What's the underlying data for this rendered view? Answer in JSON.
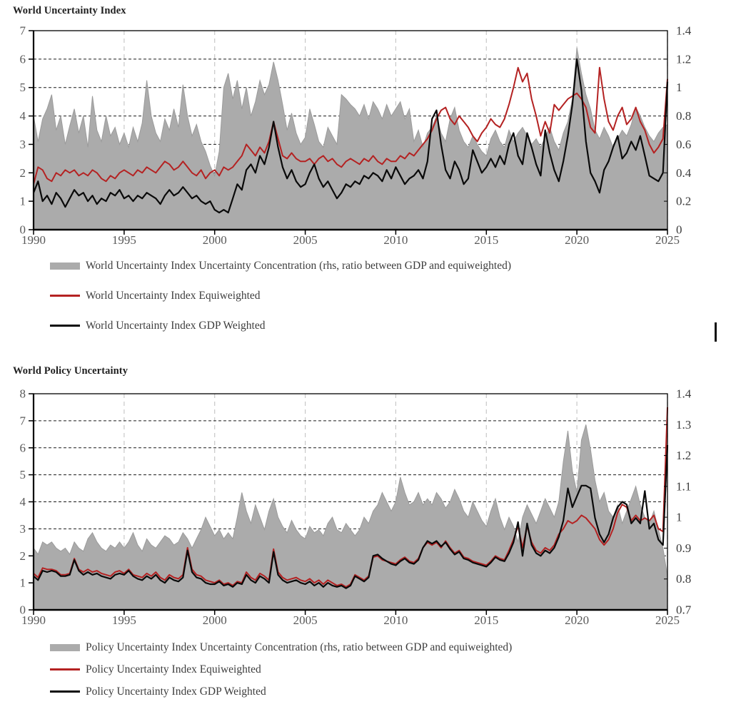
{
  "page": {
    "background": "#ffffff"
  },
  "charts": [
    {
      "title": "World Uncertainty Index",
      "legend": [
        {
          "swatch": "area",
          "color": "#ababab",
          "label": "World Uncertainty Index Uncertainty Concentration (rhs, ratio between GDP and equiweighted)"
        },
        {
          "swatch": "line",
          "color": "#b42222",
          "label": "World Uncertainty Index Equiweighted"
        },
        {
          "swatch": "line",
          "color": "#0a0a0a",
          "label": "World Uncertainty Index GDP Weighted"
        }
      ]
    },
    {
      "title": "World Policy Uncertainty",
      "legend": [
        {
          "swatch": "area",
          "color": "#ababab",
          "label": "Policy Uncertainty Index Uncertainty Concentration (rhs, ratio between GDP and equiweighted)"
        },
        {
          "swatch": "line",
          "color": "#b42222",
          "label": "Policy Uncertainty Index Equiweighted"
        },
        {
          "swatch": "line",
          "color": "#0a0a0a",
          "label": "Policy Uncertainty Index GDP Weighted"
        }
      ]
    }
  ],
  "chart_data": [
    {
      "type": "area",
      "title": "World Uncertainty Index",
      "frequency": "quarterly",
      "x": {
        "start": 1990,
        "end": 2025,
        "step": 0.25,
        "ticks": [
          1990,
          1995,
          2000,
          2005,
          2010,
          2015,
          2020,
          2025
        ],
        "tick_labels": [
          "1990",
          "1995",
          "2000",
          "2005",
          "2010",
          "2015",
          "2020",
          "2025"
        ]
      },
      "left_axis": {
        "min": 0,
        "max": 7,
        "ticks": [
          0,
          1,
          2,
          3,
          4,
          5,
          6,
          7
        ],
        "labels": [
          "0",
          "1",
          "2",
          "3",
          "4",
          "5",
          "6",
          "7"
        ]
      },
      "right_axis": {
        "min": 0,
        "max": 1.4,
        "ticks": [
          0,
          0.2,
          0.4,
          0.6,
          0.8,
          1,
          1.2,
          1.4
        ],
        "labels": [
          "0",
          "0.2",
          "0.4",
          "0.6",
          "0.8",
          "1",
          "1.2",
          "1.4"
        ]
      },
      "grid": {
        "horizontal": true,
        "vertical": true
      },
      "legend_position": "bottom",
      "series": [
        {
          "name": "World Uncertainty Index Uncertainty Concentration (rhs, ratio between GDP and equiweighted)",
          "type": "area",
          "axis": "right",
          "color": "#ababab",
          "values": [
            0.8,
            0.62,
            0.78,
            0.85,
            0.95,
            0.7,
            0.8,
            0.6,
            0.73,
            0.85,
            0.68,
            0.8,
            0.58,
            0.94,
            0.7,
            0.62,
            0.8,
            0.66,
            0.72,
            0.6,
            0.68,
            0.58,
            0.72,
            0.62,
            0.75,
            1.05,
            0.8,
            0.68,
            0.62,
            0.78,
            0.7,
            0.85,
            0.72,
            1.02,
            0.8,
            0.66,
            0.74,
            0.62,
            0.55,
            0.45,
            0.38,
            0.55,
            1.0,
            1.1,
            0.92,
            1.05,
            0.85,
            1.0,
            0.8,
            0.9,
            1.05,
            0.95,
            1.02,
            1.18,
            1.05,
            0.88,
            0.7,
            0.82,
            0.68,
            0.6,
            0.65,
            0.85,
            0.74,
            0.62,
            0.58,
            0.72,
            0.66,
            0.6,
            0.95,
            0.92,
            0.88,
            0.85,
            0.8,
            0.88,
            0.78,
            0.9,
            0.85,
            0.78,
            0.88,
            0.8,
            0.85,
            0.9,
            0.78,
            0.85,
            0.62,
            0.7,
            0.58,
            0.68,
            0.72,
            0.8,
            0.68,
            0.62,
            0.78,
            0.86,
            0.7,
            0.62,
            0.58,
            0.66,
            0.6,
            0.55,
            0.52,
            0.64,
            0.7,
            0.62,
            0.58,
            0.7,
            0.62,
            0.68,
            0.72,
            0.66,
            0.6,
            0.64,
            0.58,
            0.65,
            0.72,
            0.62,
            0.56,
            0.68,
            0.76,
            0.92,
            1.28,
            1.1,
            0.95,
            0.85,
            0.7,
            0.64,
            0.72,
            0.66,
            0.58,
            0.64,
            0.7,
            0.66,
            0.74,
            0.86,
            0.8,
            0.72,
            0.66,
            0.62,
            0.68,
            0.72,
            0.74
          ]
        },
        {
          "name": "World Uncertainty Index Equiweighted",
          "type": "line",
          "axis": "left",
          "color": "#b42222",
          "values": [
            1.6,
            2.2,
            2.1,
            1.8,
            1.7,
            2.0,
            1.9,
            2.1,
            2.0,
            2.1,
            1.9,
            2.0,
            1.9,
            2.1,
            2.0,
            1.8,
            1.7,
            1.9,
            1.8,
            2.0,
            2.1,
            2.0,
            1.9,
            2.1,
            2.0,
            2.2,
            2.1,
            2.0,
            2.2,
            2.4,
            2.3,
            2.1,
            2.2,
            2.4,
            2.2,
            2.0,
            1.9,
            2.1,
            1.8,
            2.0,
            2.1,
            1.9,
            2.2,
            2.1,
            2.2,
            2.4,
            2.6,
            3.0,
            2.8,
            2.6,
            2.9,
            2.7,
            3.1,
            3.8,
            3.2,
            2.6,
            2.5,
            2.7,
            2.5,
            2.4,
            2.4,
            2.5,
            2.3,
            2.5,
            2.6,
            2.4,
            2.5,
            2.3,
            2.2,
            2.4,
            2.5,
            2.4,
            2.3,
            2.5,
            2.4,
            2.6,
            2.4,
            2.3,
            2.5,
            2.4,
            2.4,
            2.6,
            2.5,
            2.7,
            2.6,
            2.8,
            3.0,
            3.2,
            3.5,
            3.9,
            4.2,
            4.3,
            3.9,
            3.7,
            4.0,
            3.8,
            3.6,
            3.3,
            3.1,
            3.4,
            3.6,
            3.9,
            3.7,
            3.6,
            3.9,
            4.4,
            5.0,
            5.7,
            5.2,
            5.5,
            4.6,
            4.0,
            3.3,
            3.8,
            3.4,
            4.4,
            4.2,
            4.4,
            4.6,
            4.7,
            4.8,
            4.6,
            4.3,
            3.6,
            3.4,
            5.7,
            4.6,
            3.8,
            3.5,
            4.0,
            4.3,
            3.7,
            3.9,
            4.3,
            3.8,
            3.5,
            3.0,
            2.7,
            2.9,
            3.2,
            5.3
          ]
        },
        {
          "name": "World Uncertainty Index GDP Weighted",
          "type": "line",
          "axis": "left",
          "color": "#0a0a0a",
          "values": [
            1.3,
            1.7,
            1.0,
            1.2,
            0.9,
            1.3,
            1.1,
            0.8,
            1.1,
            1.4,
            1.2,
            1.3,
            1.0,
            1.2,
            0.9,
            1.1,
            1.0,
            1.3,
            1.2,
            1.4,
            1.1,
            1.2,
            1.0,
            1.2,
            1.1,
            1.3,
            1.2,
            1.1,
            0.9,
            1.2,
            1.4,
            1.2,
            1.3,
            1.5,
            1.3,
            1.1,
            1.2,
            1.0,
            0.9,
            1.0,
            0.7,
            0.6,
            0.7,
            0.6,
            1.1,
            1.6,
            1.4,
            2.1,
            2.3,
            2.0,
            2.6,
            2.3,
            2.9,
            3.8,
            2.9,
            2.2,
            1.8,
            2.1,
            1.7,
            1.5,
            1.6,
            2.0,
            2.3,
            1.8,
            1.5,
            1.7,
            1.4,
            1.1,
            1.3,
            1.6,
            1.5,
            1.7,
            1.6,
            1.9,
            1.8,
            2.0,
            1.9,
            1.7,
            2.1,
            1.8,
            2.2,
            1.9,
            1.6,
            1.8,
            1.9,
            2.1,
            1.8,
            2.4,
            3.9,
            4.2,
            3.0,
            2.1,
            1.8,
            2.4,
            2.1,
            1.6,
            1.8,
            2.8,
            2.4,
            2.0,
            2.2,
            2.5,
            2.2,
            2.6,
            2.3,
            3.0,
            3.4,
            2.6,
            2.3,
            3.4,
            2.9,
            2.3,
            1.9,
            3.5,
            2.7,
            2.1,
            1.7,
            2.4,
            3.3,
            4.4,
            6.0,
            4.9,
            3.1,
            2.0,
            1.7,
            1.3,
            2.1,
            2.4,
            2.9,
            3.3,
            2.5,
            2.7,
            3.1,
            2.8,
            3.3,
            2.6,
            1.9,
            1.8,
            1.7,
            2.0,
            5.2
          ]
        }
      ]
    },
    {
      "type": "area",
      "title": "World Policy Uncertainty",
      "frequency": "quarterly",
      "x": {
        "start": 1990,
        "end": 2025,
        "step": 0.25,
        "ticks": [
          1990,
          1995,
          2000,
          2005,
          2010,
          2015,
          2020,
          2025
        ],
        "tick_labels": [
          "1990",
          "1995",
          "2000",
          "2005",
          "2010",
          "2015",
          "2020",
          "2025"
        ]
      },
      "left_axis": {
        "min": 0,
        "max": 8,
        "ticks": [
          0,
          1,
          2,
          3,
          4,
          5,
          6,
          7,
          8
        ],
        "labels": [
          "0",
          "1",
          "2",
          "3",
          "4",
          "5",
          "6",
          "7",
          "8"
        ]
      },
      "right_axis": {
        "min": 0.7,
        "max": 1.4,
        "ticks": [
          0.7,
          0.8,
          0.9,
          1,
          1.1,
          1.2,
          1.3,
          1.4
        ],
        "labels": [
          "0.7",
          "0.8",
          "0.9",
          "1",
          "1.1",
          "1.2",
          "1.3",
          "1.4"
        ]
      },
      "grid": {
        "horizontal": true,
        "vertical": true
      },
      "legend_position": "bottom",
      "series": [
        {
          "name": "Policy Uncertainty Index Uncertainty Concentration (rhs, ratio between GDP and equiweighted)",
          "type": "area",
          "axis": "right",
          "color": "#ababab",
          "values": [
            0.9,
            0.88,
            0.92,
            0.91,
            0.92,
            0.9,
            0.89,
            0.9,
            0.88,
            0.92,
            0.9,
            0.89,
            0.93,
            0.95,
            0.92,
            0.9,
            0.89,
            0.91,
            0.9,
            0.92,
            0.9,
            0.92,
            0.95,
            0.91,
            0.89,
            0.93,
            0.91,
            0.9,
            0.92,
            0.94,
            0.93,
            0.91,
            0.92,
            0.95,
            0.93,
            0.9,
            0.93,
            0.96,
            1.0,
            0.97,
            0.94,
            0.96,
            0.93,
            0.95,
            0.93,
            1.0,
            1.08,
            1.02,
            0.98,
            1.04,
            1.0,
            0.96,
            1.02,
            1.06,
            1.0,
            0.97,
            0.95,
            0.99,
            0.96,
            0.94,
            0.93,
            0.97,
            0.95,
            0.96,
            0.94,
            0.98,
            1.0,
            0.96,
            0.95,
            0.98,
            0.96,
            0.94,
            0.96,
            1.0,
            0.98,
            1.02,
            1.04,
            1.08,
            1.05,
            1.02,
            1.05,
            1.13,
            1.08,
            1.04,
            1.05,
            1.08,
            1.04,
            1.06,
            1.04,
            1.08,
            1.06,
            1.03,
            1.05,
            1.09,
            1.06,
            1.02,
            1.0,
            1.05,
            1.02,
            0.99,
            0.97,
            1.02,
            1.06,
            1.0,
            0.96,
            1.0,
            0.97,
            0.92,
            1.0,
            1.04,
            1.01,
            0.98,
            1.02,
            1.06,
            1.03,
            1.0,
            1.05,
            1.18,
            1.28,
            1.15,
            1.08,
            1.25,
            1.3,
            1.22,
            1.12,
            1.05,
            1.08,
            1.02,
            1.0,
            1.04,
            0.98,
            1.02,
            1.06,
            1.1,
            1.04,
            1.0,
            0.98,
            1.02,
            0.96,
            0.9,
            0.81
          ]
        },
        {
          "name": "Policy Uncertainty Index Equiweighted",
          "type": "line",
          "axis": "left",
          "color": "#b42222",
          "values": [
            1.35,
            1.2,
            1.55,
            1.5,
            1.5,
            1.45,
            1.3,
            1.3,
            1.35,
            1.9,
            1.5,
            1.4,
            1.5,
            1.4,
            1.45,
            1.35,
            1.3,
            1.25,
            1.4,
            1.45,
            1.35,
            1.5,
            1.3,
            1.25,
            1.2,
            1.35,
            1.25,
            1.4,
            1.2,
            1.1,
            1.3,
            1.2,
            1.15,
            1.3,
            2.3,
            1.5,
            1.3,
            1.25,
            1.1,
            1.05,
            1.0,
            1.1,
            0.95,
            1.0,
            0.9,
            1.05,
            1.0,
            1.4,
            1.2,
            1.1,
            1.35,
            1.25,
            1.1,
            2.25,
            1.4,
            1.2,
            1.1,
            1.15,
            1.2,
            1.1,
            1.05,
            1.15,
            1.0,
            1.1,
            0.95,
            1.1,
            1.0,
            0.9,
            0.95,
            0.85,
            0.95,
            1.3,
            1.2,
            1.1,
            1.25,
            1.95,
            2.0,
            1.85,
            1.8,
            1.75,
            1.7,
            1.85,
            1.95,
            1.8,
            1.75,
            1.9,
            2.3,
            2.5,
            2.4,
            2.5,
            2.3,
            2.55,
            2.3,
            2.1,
            2.2,
            1.95,
            1.9,
            1.8,
            1.75,
            1.7,
            1.65,
            1.8,
            2.0,
            1.9,
            1.85,
            2.2,
            2.6,
            3.1,
            2.3,
            3.1,
            2.5,
            2.2,
            2.1,
            2.3,
            2.2,
            2.4,
            2.8,
            3.0,
            3.3,
            3.2,
            3.3,
            3.5,
            3.4,
            3.2,
            3.0,
            2.6,
            2.4,
            2.6,
            3.0,
            3.6,
            3.9,
            3.8,
            3.3,
            3.5,
            3.3,
            3.4,
            3.3,
            3.5,
            3.0,
            2.9,
            7.5
          ]
        },
        {
          "name": "Policy Uncertainty Index GDP Weighted",
          "type": "line",
          "axis": "left",
          "color": "#0a0a0a",
          "values": [
            1.25,
            1.1,
            1.45,
            1.4,
            1.45,
            1.4,
            1.25,
            1.25,
            1.3,
            1.85,
            1.45,
            1.3,
            1.4,
            1.3,
            1.35,
            1.25,
            1.2,
            1.15,
            1.3,
            1.35,
            1.3,
            1.45,
            1.25,
            1.15,
            1.1,
            1.25,
            1.15,
            1.3,
            1.1,
            1.0,
            1.2,
            1.1,
            1.05,
            1.2,
            2.2,
            1.4,
            1.2,
            1.15,
            1.0,
            0.95,
            0.95,
            1.05,
            0.9,
            0.95,
            0.85,
            1.0,
            0.95,
            1.3,
            1.1,
            1.0,
            1.25,
            1.15,
            1.0,
            2.15,
            1.3,
            1.1,
            1.0,
            1.05,
            1.1,
            1.0,
            0.95,
            1.05,
            0.9,
            1.0,
            0.85,
            1.0,
            0.9,
            0.85,
            0.9,
            0.8,
            0.9,
            1.25,
            1.15,
            1.05,
            1.2,
            2.0,
            2.05,
            1.9,
            1.8,
            1.7,
            1.65,
            1.8,
            1.9,
            1.75,
            1.7,
            1.85,
            2.3,
            2.55,
            2.45,
            2.55,
            2.35,
            2.5,
            2.25,
            2.05,
            2.15,
            1.9,
            1.85,
            1.75,
            1.7,
            1.65,
            1.6,
            1.75,
            1.95,
            1.85,
            1.8,
            2.1,
            2.5,
            3.25,
            2.0,
            3.2,
            2.4,
            2.1,
            2.0,
            2.2,
            2.1,
            2.3,
            2.7,
            3.3,
            4.5,
            3.8,
            4.2,
            4.6,
            4.6,
            4.5,
            3.4,
            2.8,
            2.5,
            2.8,
            3.4,
            3.8,
            4.0,
            3.9,
            3.2,
            3.4,
            3.2,
            4.4,
            3.0,
            3.2,
            2.6,
            2.4,
            6.1
          ]
        }
      ]
    }
  ]
}
